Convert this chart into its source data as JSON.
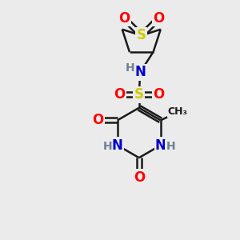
{
  "bg_color": "#ebebeb",
  "bond_color": "#1a1a1a",
  "bond_width": 1.8,
  "atom_colors": {
    "O": "#ff0000",
    "N": "#0000cc",
    "S": "#cccc00",
    "S_sulfonamide": "#cccc00",
    "C": "#1a1a1a",
    "H": "#708090"
  },
  "font_size_large": 12,
  "font_size_med": 10,
  "font_size_small": 9
}
